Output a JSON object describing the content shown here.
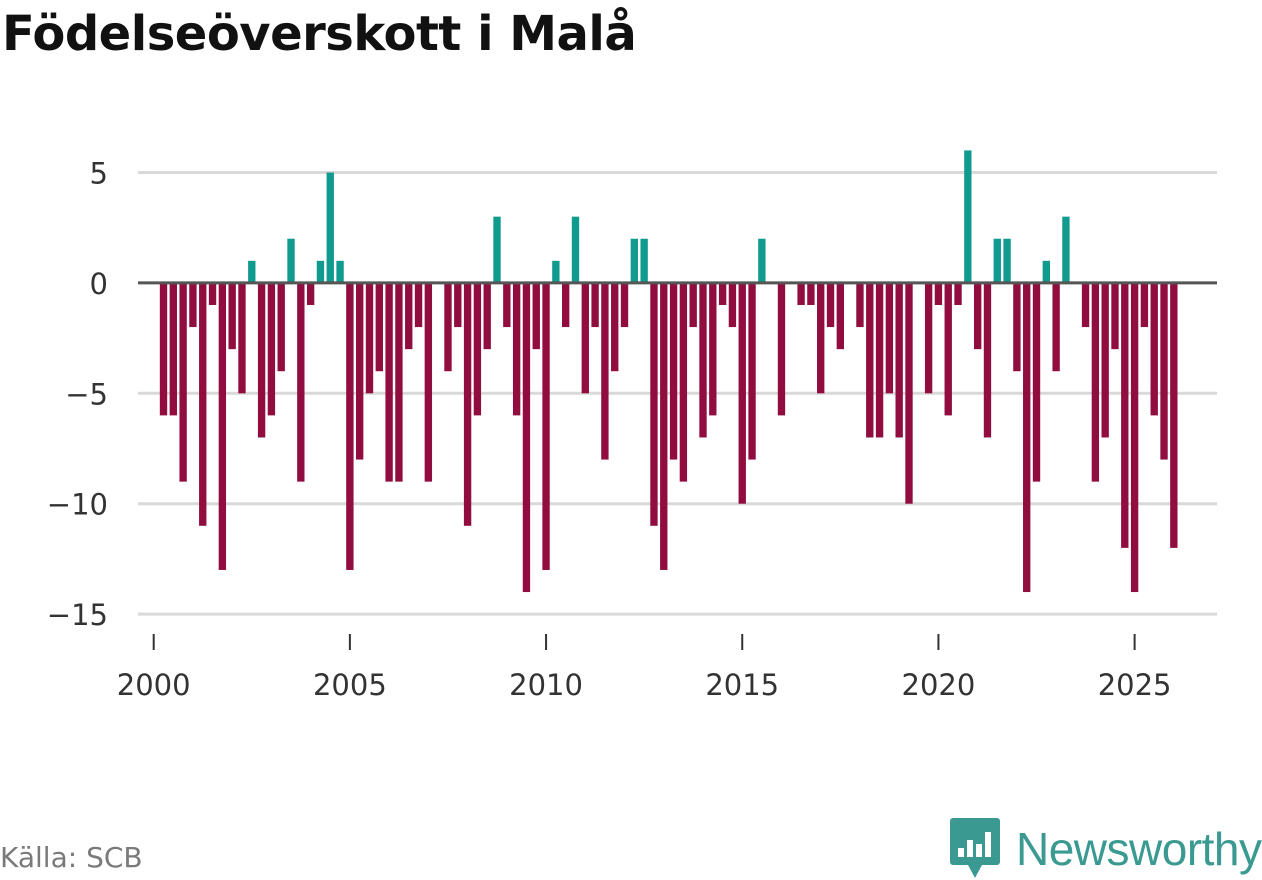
{
  "page": {
    "title": "Födelseöverskott i Malå",
    "source": "Källa: SCB",
    "brand": "Newsworthy"
  },
  "colors": {
    "positive": "#119a8e",
    "negative": "#910d3f",
    "zero_line": "#555555",
    "grid": "#d9d9d9",
    "brand": "#3a9a91"
  },
  "icons": {
    "logo": "newsworthy-logo-icon"
  },
  "chart_data": {
    "type": "bar",
    "title": "Födelseöverskott i Malå",
    "xlabel": "",
    "ylabel": "",
    "x_start": 2000.25,
    "x_step": 0.25,
    "xlim": [
      1999.6,
      2027.1
    ],
    "ylim": [
      -15.9,
      6.2
    ],
    "yticks": [
      5,
      0,
      -5,
      -10,
      -15
    ],
    "ytick_labels": [
      "5",
      "0",
      "−5",
      "−10",
      "−15"
    ],
    "xticks": [
      2000,
      2005,
      2010,
      2015,
      2020,
      2025
    ],
    "xtick_labels": [
      "2000",
      "2005",
      "2010",
      "2015",
      "2020",
      "2025"
    ],
    "grid": true,
    "values": [
      -6,
      -6,
      -9,
      -2,
      -11,
      -1,
      -13,
      -3,
      -5,
      1,
      -7,
      -6,
      -4,
      2,
      -9,
      -1,
      1,
      5,
      1,
      -13,
      -8,
      -5,
      -4,
      -9,
      -9,
      -3,
      -2,
      -9,
      0,
      -4,
      -2,
      -11,
      -6,
      -3,
      3,
      -2,
      -6,
      -14,
      -3,
      -13,
      1,
      -2,
      3,
      -5,
      -2,
      -8,
      -4,
      -2,
      2,
      2,
      -11,
      -13,
      -8,
      -9,
      -2,
      -7,
      -6,
      -1,
      -2,
      -10,
      -8,
      2,
      0,
      -6,
      0,
      -1,
      -1,
      -5,
      -2,
      -3,
      0,
      -2,
      -7,
      -7,
      -5,
      -7,
      -10,
      0,
      -5,
      -1,
      -6,
      -1,
      6,
      -3,
      -7,
      2,
      2,
      -4,
      -14,
      -9,
      1,
      -4,
      3,
      0,
      -2,
      -9,
      -7,
      -3,
      -12,
      -14,
      -2,
      -6,
      -8,
      -12
    ]
  }
}
